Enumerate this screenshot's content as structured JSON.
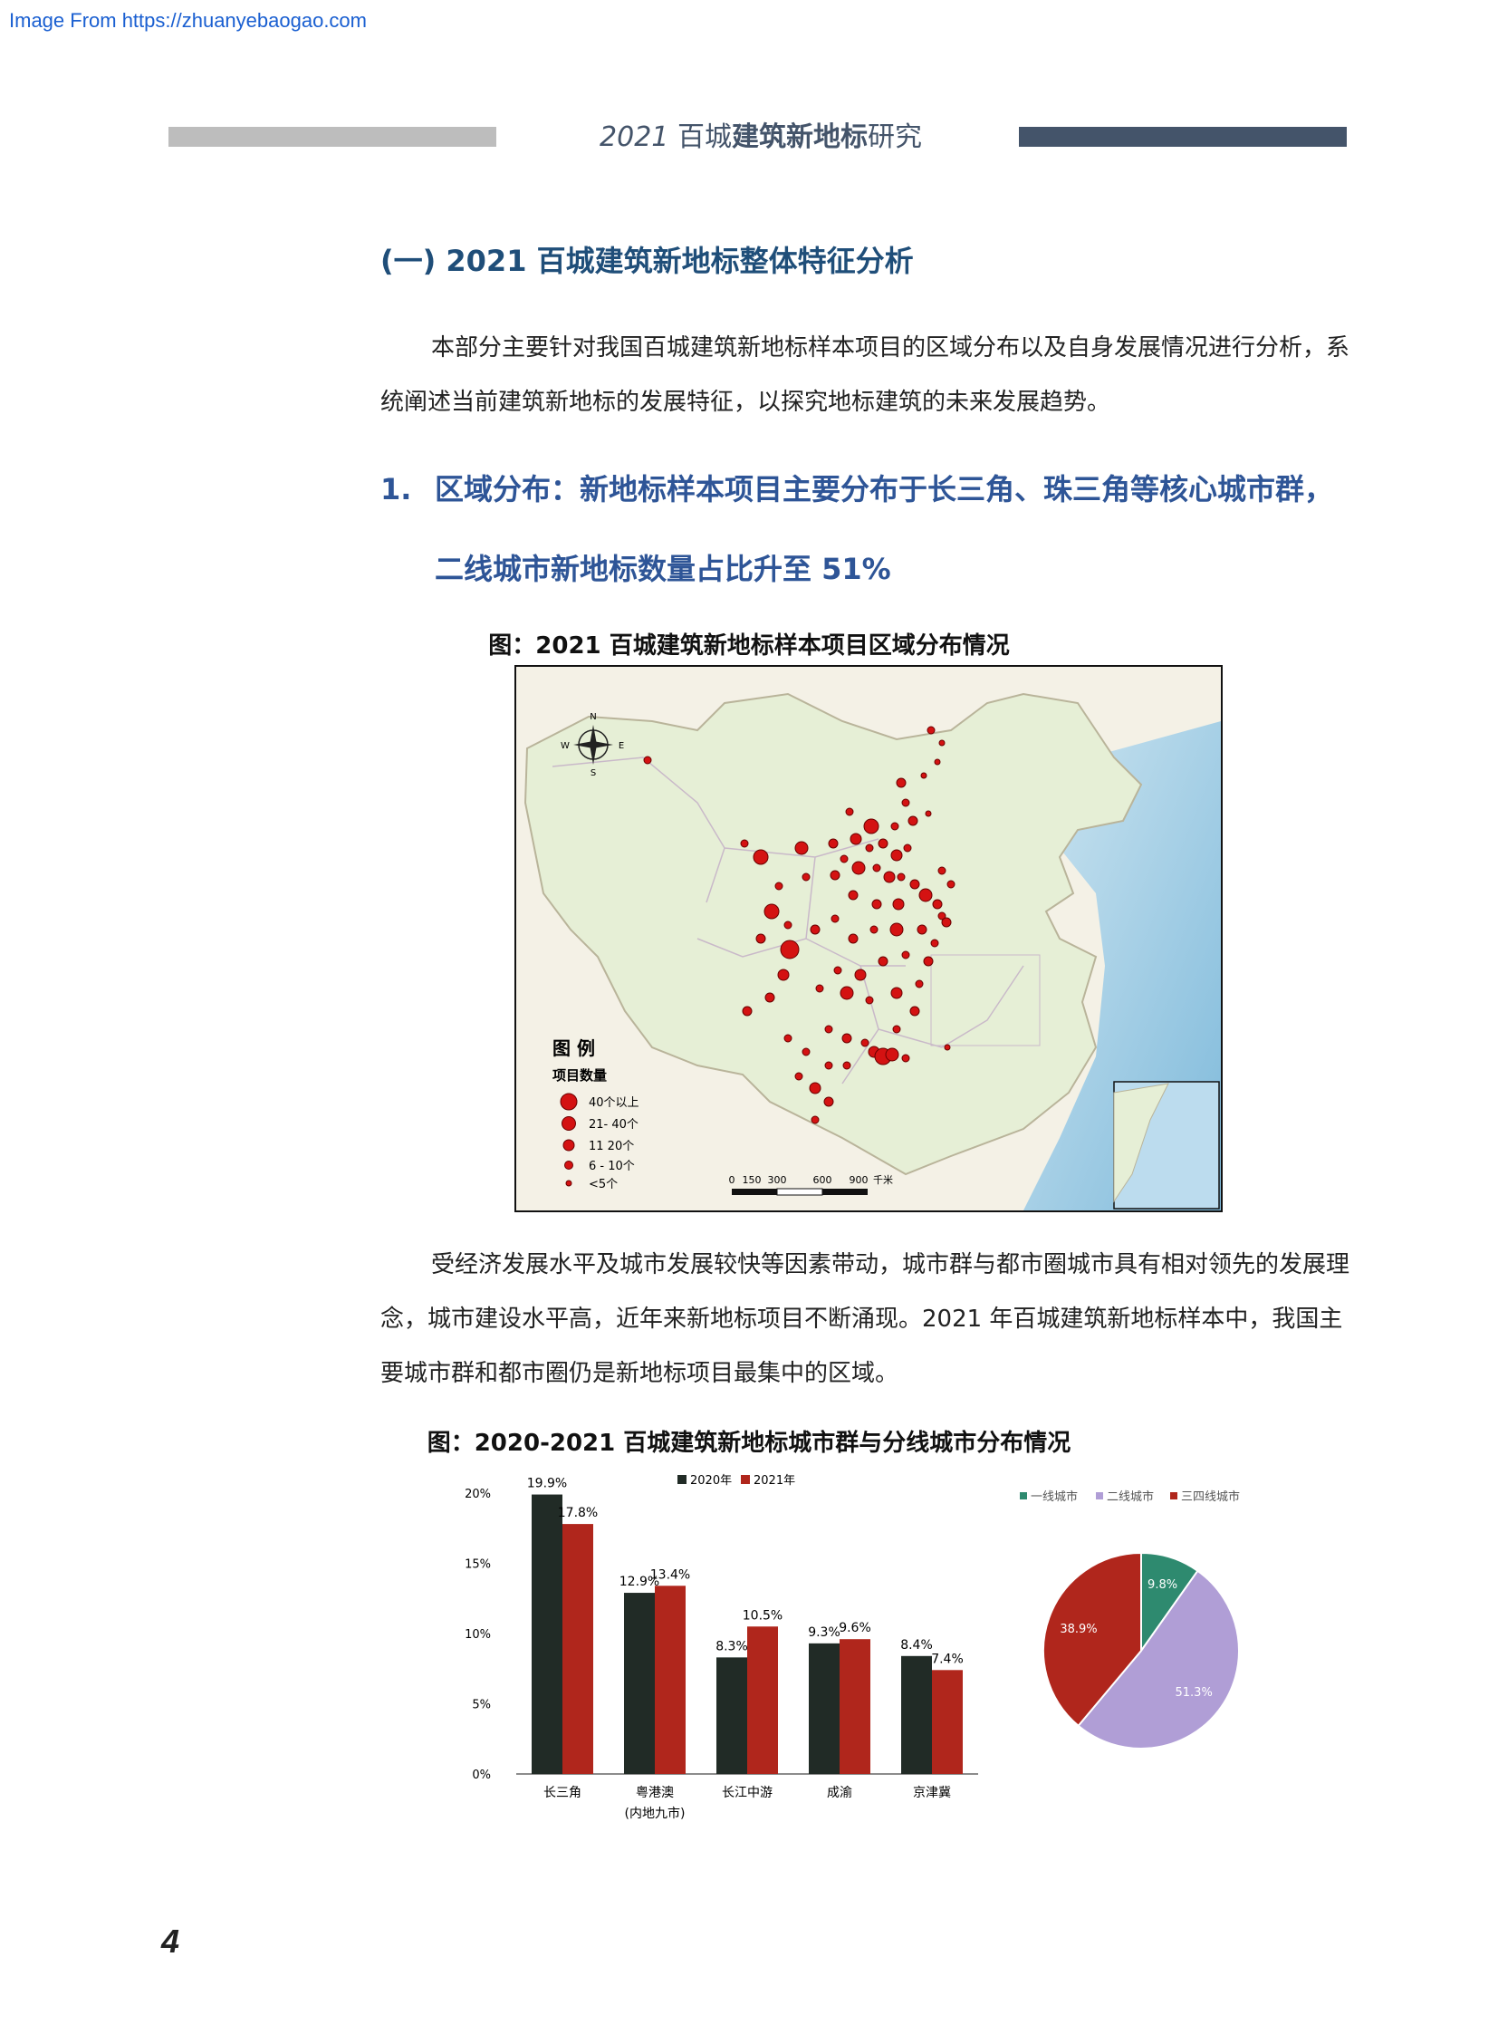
{
  "watermark": "Image From https://zhuanyebaogao.com",
  "header": {
    "year": "2021",
    "pre": "百城",
    "bold": "建筑新地标",
    "post": "研究"
  },
  "section_title": "(一) 2021 百城建筑新地标整体特征分析",
  "intro_paragraph": "本部分主要针对我国百城建筑新地标样本项目的区域分布以及自身发展情况进行分析，系统阐述当前建筑新地标的发展特征，以探究地标建筑的未来发展趋势。",
  "subsection": {
    "number": "1.",
    "line1": "区域分布：新地标样本项目主要分布于长三角、珠三角等核心城市群，",
    "line2": "二线城市新地标数量占比升至 51%"
  },
  "figure1": {
    "caption": "图：2021 百城建筑新地标样本项目区域分布情况",
    "legend_title": "图    例",
    "legend_subtitle": "项目数量",
    "legend_items": [
      "40个以上",
      "21- 40个",
      "11  20个",
      "6 - 10个",
      "<5个"
    ],
    "scale_labels": [
      "0",
      "150",
      "300",
      "600",
      "900",
      "千米"
    ],
    "compass": {
      "n": "N",
      "s": "S",
      "w": "W",
      "e": "E"
    }
  },
  "body_paragraph": "受经济发展水平及城市发展较快等因素带动，城市群与都市圈城市具有相对领先的发展理念，城市建设水平高，近年来新地标项目不断涌现。2021 年百城建筑新地标样本中，我国主要城市群和都市圈仍是新地标项目最集中的区域。",
  "figure2": {
    "caption": "图：2020-2021 百城建筑新地标城市群与分线城市分布情况"
  },
  "colors": {
    "y2020": "#212b26",
    "y2021": "#b0261c",
    "tier1": "#2e8a6f",
    "tier2": "#b09ed6",
    "tier34": "#b0261c"
  },
  "chart_data": [
    {
      "type": "bar",
      "categories": [
        "长三角",
        "粤港澳",
        "长江中游",
        "成渝",
        "京津冀"
      ],
      "category_sublabels": [
        "",
        "(内地九市)",
        "",
        "",
        ""
      ],
      "series": [
        {
          "name": "2020年",
          "values": [
            19.9,
            12.9,
            8.3,
            9.3,
            8.4
          ],
          "labels": [
            "19.9%",
            "12.9%",
            "8.3%",
            "9.3%",
            "8.4%"
          ]
        },
        {
          "name": "2021年",
          "values": [
            17.8,
            13.4,
            10.5,
            9.6,
            7.4
          ],
          "labels": [
            "17.8%",
            "13.4%",
            "10.5%",
            "9.6%",
            "7.4%"
          ]
        }
      ],
      "ylim": [
        0,
        20
      ],
      "yticks": [
        "0%",
        "5%",
        "10%",
        "15%",
        "20%"
      ],
      "legend": "top"
    },
    {
      "type": "pie",
      "labels": [
        "一线城市",
        "二线城市",
        "三四线城市"
      ],
      "values": [
        9.8,
        51.3,
        38.9
      ],
      "value_labels": [
        "9.8%",
        "51.3%",
        "38.9%"
      ],
      "legend": "top"
    }
  ],
  "page_number": "4"
}
